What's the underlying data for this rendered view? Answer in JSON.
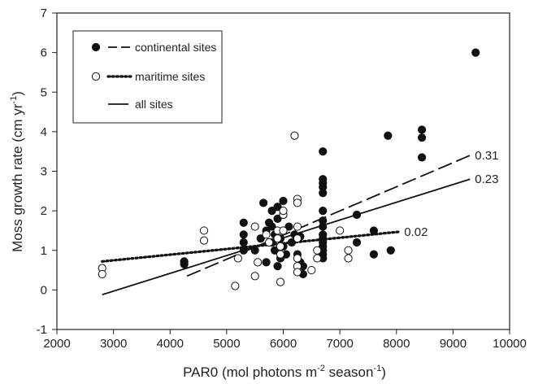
{
  "chart_data": {
    "type": "scatter",
    "xlabel_main": "PAR0 (mol photons m",
    "xlabel_sup1": "-2",
    "xlabel_mid": " season",
    "xlabel_sup2": "-1",
    "xlabel_end": ")",
    "ylabel_main": "Moss growth rate (cm yr",
    "ylabel_sup": "-1",
    "ylabel_end": ")",
    "xlim": [
      2000,
      10000
    ],
    "ylim": [
      -1,
      7
    ],
    "xticks": [
      2000,
      3000,
      4000,
      5000,
      6000,
      7000,
      8000,
      9000,
      10000
    ],
    "yticks": [
      -1,
      0,
      1,
      2,
      3,
      4,
      5,
      6,
      7
    ],
    "legend_position": "top-left",
    "series": [
      {
        "name": "continental sites",
        "marker": "filled-circle",
        "points": [
          [
            4250,
            0.65
          ],
          [
            4250,
            0.72
          ],
          [
            5300,
            1.7
          ],
          [
            5300,
            1.4
          ],
          [
            5300,
            1.2
          ],
          [
            5300,
            1.0
          ],
          [
            5500,
            1.0
          ],
          [
            5600,
            1.3
          ],
          [
            5650,
            2.2
          ],
          [
            5700,
            1.5
          ],
          [
            5700,
            0.7
          ],
          [
            5750,
            1.7
          ],
          [
            5800,
            2.0
          ],
          [
            5800,
            1.6
          ],
          [
            5800,
            1.2
          ],
          [
            5850,
            1.4
          ],
          [
            5850,
            1.0
          ],
          [
            5900,
            2.1
          ],
          [
            5900,
            1.8
          ],
          [
            5900,
            0.6
          ],
          [
            5950,
            1.3
          ],
          [
            5950,
            0.8
          ],
          [
            6000,
            2.25
          ],
          [
            6000,
            1.9
          ],
          [
            6000,
            1.5
          ],
          [
            6000,
            1.1
          ],
          [
            6050,
            0.9
          ],
          [
            6100,
            1.6
          ],
          [
            6150,
            1.2
          ],
          [
            6200,
            1.4
          ],
          [
            6250,
            0.9
          ],
          [
            6300,
            1.35
          ],
          [
            6300,
            0.7
          ],
          [
            6350,
            0.4
          ],
          [
            6350,
            0.6
          ],
          [
            6700,
            3.5
          ],
          [
            6700,
            2.8
          ],
          [
            6700,
            2.7
          ],
          [
            6700,
            2.6
          ],
          [
            6700,
            2.45
          ],
          [
            6700,
            2.0
          ],
          [
            6700,
            1.75
          ],
          [
            6700,
            1.6
          ],
          [
            6700,
            1.4
          ],
          [
            6700,
            1.3
          ],
          [
            6700,
            1.2
          ],
          [
            6700,
            1.1
          ],
          [
            6700,
            1.0
          ],
          [
            6700,
            0.9
          ],
          [
            6700,
            0.8
          ],
          [
            7300,
            1.9
          ],
          [
            7300,
            1.2
          ],
          [
            7600,
            1.5
          ],
          [
            7600,
            0.9
          ],
          [
            7850,
            3.9
          ],
          [
            7900,
            1.0
          ],
          [
            8450,
            4.05
          ],
          [
            8450,
            3.85
          ],
          [
            8450,
            3.35
          ],
          [
            9400,
            6.0
          ]
        ]
      },
      {
        "name": "maritime sites",
        "marker": "open-circle",
        "points": [
          [
            2800,
            0.55
          ],
          [
            2800,
            0.4
          ],
          [
            4600,
            1.5
          ],
          [
            4600,
            1.25
          ],
          [
            5150,
            0.1
          ],
          [
            5200,
            0.8
          ],
          [
            5500,
            1.6
          ],
          [
            5500,
            0.35
          ],
          [
            5550,
            0.7
          ],
          [
            5700,
            1.4
          ],
          [
            5750,
            1.2
          ],
          [
            5900,
            1.5
          ],
          [
            5900,
            1.3
          ],
          [
            5950,
            1.1
          ],
          [
            5950,
            0.9
          ],
          [
            5950,
            0.2
          ],
          [
            6000,
            1.5
          ],
          [
            6000,
            1.9
          ],
          [
            6000,
            2.0
          ],
          [
            6200,
            3.9
          ],
          [
            6250,
            2.3
          ],
          [
            6250,
            2.2
          ],
          [
            6250,
            1.6
          ],
          [
            6250,
            1.3
          ],
          [
            6250,
            0.8
          ],
          [
            6250,
            0.6
          ],
          [
            6250,
            0.45
          ],
          [
            6500,
            0.5
          ],
          [
            6600,
            1.0
          ],
          [
            6600,
            0.8
          ],
          [
            7000,
            1.5
          ],
          [
            7150,
            1.0
          ],
          [
            7150,
            0.8
          ]
        ]
      }
    ],
    "trendlines": [
      {
        "name": "continental sites",
        "style": "dashed",
        "x": [
          4300,
          9300
        ],
        "y": [
          0.35,
          3.4
        ],
        "label": "0.31"
      },
      {
        "name": "maritime sites",
        "style": "dotted",
        "x": [
          2800,
          8050
        ],
        "y": [
          0.72,
          1.47
        ],
        "label": "0.02"
      },
      {
        "name": "all sites",
        "style": "solid",
        "x": [
          2800,
          9300
        ],
        "y": [
          -0.12,
          2.8
        ],
        "label": "0.23"
      }
    ]
  }
}
